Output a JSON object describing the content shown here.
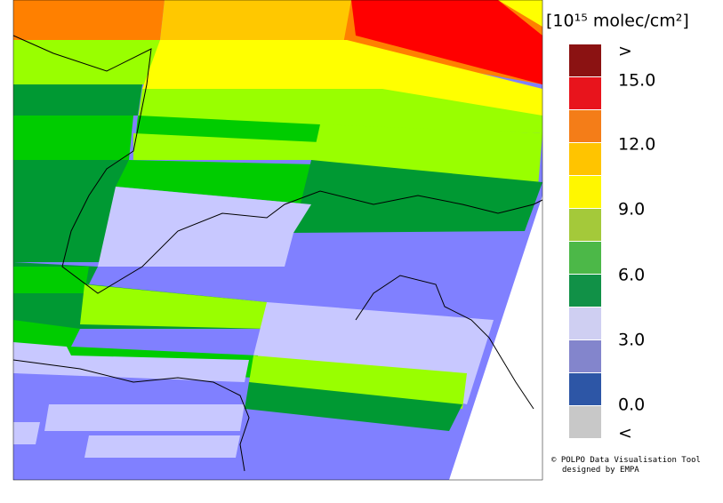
{
  "colorbar": {
    "title": "[10¹⁵ molec/cm²]",
    "swatches": [
      "#8b1212",
      "#e8141c",
      "#f47d18",
      "#ffc400",
      "#fff700",
      "#a4c93a",
      "#4cb848",
      "#119147",
      "#cfcff2",
      "#8385cc",
      "#2d56a6",
      "#c8c8c8"
    ],
    "labels": [
      ">",
      "15.0",
      "12.0",
      "9.0",
      "6.0",
      "3.0",
      "0.0",
      "<"
    ]
  },
  "credit": [
    "© POLPO Data Visualisation Tool",
    "designed by EMPA"
  ]
}
